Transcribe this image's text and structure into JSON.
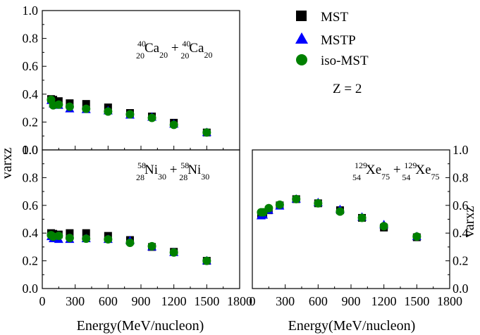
{
  "chart_data": {
    "type": "scatter",
    "legend": {
      "placement": "top-right",
      "entries": [
        {
          "name": "MST",
          "marker": "square",
          "color": "#000000"
        },
        {
          "name": "MSTP",
          "marker": "triangle",
          "color": "#0000ff"
        },
        {
          "name": "iso-MST",
          "marker": "circle",
          "color": "#008000"
        }
      ]
    },
    "annotation": "Z = 2",
    "ylabel": "varxz",
    "xlabel": "Energy(MeV/nucleon)",
    "xlim": [
      0,
      1800
    ],
    "xticks": [
      "0",
      "300",
      "600",
      "900",
      "1200",
      "1500",
      "1800"
    ],
    "ylim": [
      0.0,
      1.0
    ],
    "yticks": [
      "0.0",
      "0.2",
      "0.4",
      "0.6",
      "0.8",
      "1.0"
    ],
    "panels": [
      {
        "system": {
          "a1": "40",
          "z1": "20",
          "el1": "Ca",
          "n1": "20",
          "a2": "40",
          "z2": "20",
          "el2": "Ca",
          "n2": "20"
        },
        "x": [
          80,
          100,
          150,
          250,
          400,
          600,
          800,
          1000,
          1200,
          1500
        ],
        "series": [
          {
            "name": "MST",
            "values": [
              0.365,
              0.36,
              0.35,
              0.335,
              0.33,
              0.305,
              0.265,
              0.24,
              0.195,
              0.125
            ]
          },
          {
            "name": "MSTP",
            "values": [
              0.355,
              0.33,
              0.32,
              0.295,
              0.29,
              0.28,
              0.25,
              0.235,
              0.185,
              0.125
            ]
          },
          {
            "name": "iso-MST",
            "values": [
              0.36,
              0.32,
              0.325,
              0.31,
              0.295,
              0.275,
              0.255,
              0.23,
              0.18,
              0.125
            ]
          }
        ]
      },
      {
        "system": {
          "a1": "58",
          "z1": "28",
          "el1": "Ni",
          "n1": "30",
          "a2": "58",
          "z2": "28",
          "el2": "Ni",
          "n2": "30"
        },
        "x": [
          80,
          100,
          150,
          250,
          400,
          600,
          800,
          1000,
          1200,
          1500
        ],
        "series": [
          {
            "name": "MST",
            "values": [
              0.4,
              0.395,
              0.39,
              0.4,
              0.4,
              0.38,
              0.35,
              0.3,
              0.265,
              0.2
            ]
          },
          {
            "name": "MSTP",
            "values": [
              0.375,
              0.36,
              0.355,
              0.355,
              0.36,
              0.355,
              0.345,
              0.3,
              0.26,
              0.2
            ]
          },
          {
            "name": "iso-MST",
            "values": [
              0.385,
              0.375,
              0.38,
              0.365,
              0.36,
              0.355,
              0.33,
              0.305,
              0.26,
              0.2
            ]
          }
        ]
      },
      {
        "system": {
          "a1": "129",
          "z1": "54",
          "el1": "Xe",
          "n1": "75",
          "a2": "129",
          "z2": "54",
          "el2": "Xe",
          "n2": "75"
        },
        "x": [
          80,
          100,
          150,
          250,
          400,
          600,
          800,
          1000,
          1200,
          1500
        ],
        "series": [
          {
            "name": "MST",
            "values": [
              0.53,
              0.535,
              0.565,
              0.6,
              0.645,
              0.615,
              0.565,
              0.51,
              0.44,
              0.37
            ]
          },
          {
            "name": "MSTP",
            "values": [
              0.525,
              0.53,
              0.565,
              0.595,
              0.645,
              0.62,
              0.57,
              0.515,
              0.46,
              0.375
            ]
          },
          {
            "name": "iso-MST",
            "values": [
              0.55,
              0.55,
              0.58,
              0.605,
              0.645,
              0.615,
              0.555,
              0.51,
              0.45,
              0.375
            ]
          }
        ]
      }
    ]
  }
}
